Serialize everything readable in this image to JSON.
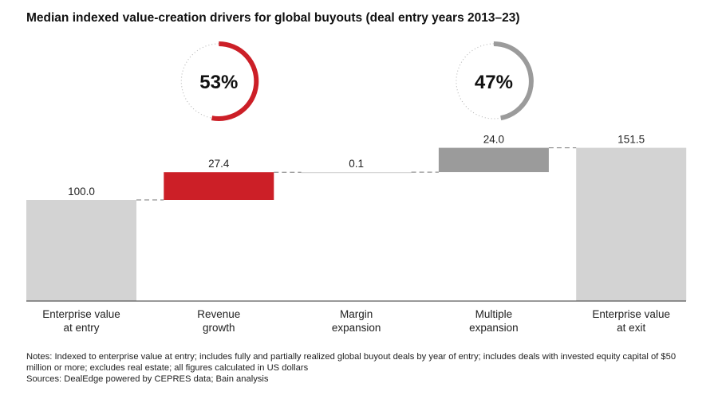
{
  "chart_data": {
    "type": "waterfall",
    "title": "Median indexed value-creation drivers for global buyouts (deal entry years 2013–23)",
    "categories": [
      [
        "Enterprise value",
        "at entry"
      ],
      [
        "Revenue",
        "growth"
      ],
      [
        "Margin",
        "expansion"
      ],
      [
        "Multiple",
        "expansion"
      ],
      [
        "Enterprise value",
        "at exit"
      ]
    ],
    "values": [
      100.0,
      27.4,
      0.1,
      24.0,
      151.5
    ],
    "labels": [
      "100.0",
      "27.4",
      "0.1",
      "24.0",
      "151.5"
    ],
    "kinds": [
      "total",
      "delta",
      "delta",
      "delta",
      "total"
    ],
    "colors": [
      "#d3d3d3",
      "#cc1f27",
      "#d3d3d3",
      "#9b9b9b",
      "#d3d3d3"
    ],
    "ylim": [
      0,
      160
    ],
    "donuts": [
      {
        "label": "53%",
        "value": 53,
        "color": "#cc1f27",
        "over": 1
      },
      {
        "label": "47%",
        "value": 47,
        "color": "#9b9b9b",
        "over": 3
      }
    ]
  },
  "notes": [
    "Notes: Indexed to enterprise value at entry; includes fully and partially realized global buyout deals by year of entry; includes deals with invested equity capital of $50 million or more; excludes real estate; all figures calculated in US dollars",
    "Sources: DealEdge powered by CEPRES data; Bain analysis"
  ]
}
